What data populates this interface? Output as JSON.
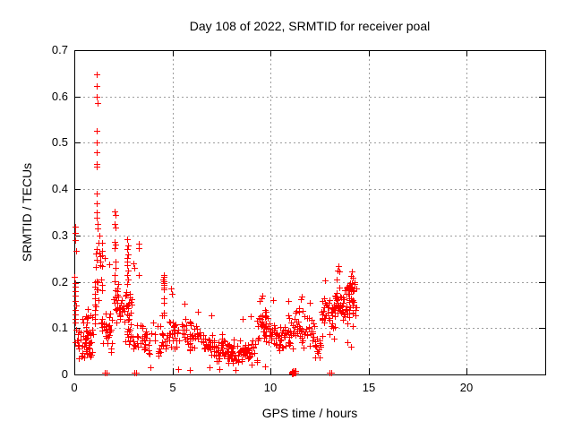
{
  "title": "Day 108 of 2022, SRMTID for receiver poal",
  "chart_data": {
    "type": "scatter",
    "title": "Day 108 of 2022, SRMTID for receiver poal",
    "xlabel": "GPS time / hours",
    "ylabel": "SRMTID / TECUs",
    "xlim": [
      0,
      24
    ],
    "ylim": [
      0,
      0.7
    ],
    "xticks": [
      0,
      5,
      10,
      15,
      20
    ],
    "yticks": [
      0,
      0.1,
      0.2,
      0.3,
      0.4,
      0.5,
      0.6,
      0.7
    ],
    "grid": true,
    "legend": "none",
    "marker": "plus",
    "marker_color": "#ff0000",
    "grid_color": "#9e9e9e",
    "axis_color": "#000000",
    "band_seed": 7,
    "points": [
      [
        0.03,
        0.32
      ],
      [
        0.06,
        0.305
      ],
      [
        0.05,
        0.29
      ],
      [
        0.08,
        0.267
      ],
      [
        0.02,
        0.21
      ],
      [
        0.04,
        0.198
      ],
      [
        0.03,
        0.19
      ],
      [
        0.06,
        0.18
      ],
      [
        0.05,
        0.17
      ],
      [
        0.04,
        0.158
      ],
      [
        0.07,
        0.148
      ],
      [
        0.03,
        0.14
      ],
      [
        0.05,
        0.13
      ],
      [
        0.06,
        0.12
      ],
      [
        0.04,
        0.112
      ],
      [
        1.05,
        0.2
      ],
      [
        1.06,
        0.19
      ],
      [
        1.04,
        0.175
      ],
      [
        1.07,
        0.165
      ],
      [
        1.05,
        0.15
      ],
      [
        1.06,
        0.14
      ],
      [
        1.04,
        0.13
      ],
      [
        1.05,
        0.12
      ],
      [
        1.03,
        0.11
      ],
      [
        1.14,
        0.648
      ],
      [
        1.15,
        0.622
      ],
      [
        1.16,
        0.6
      ],
      [
        1.17,
        0.585
      ],
      [
        1.13,
        0.525
      ],
      [
        1.14,
        0.5
      ],
      [
        1.15,
        0.48
      ],
      [
        1.13,
        0.455
      ],
      [
        1.16,
        0.448
      ],
      [
        1.14,
        0.39
      ],
      [
        1.15,
        0.37
      ],
      [
        1.13,
        0.35
      ],
      [
        1.16,
        0.338
      ],
      [
        1.2,
        0.325
      ],
      [
        1.28,
        0.3
      ],
      [
        1.22,
        0.285
      ],
      [
        1.55,
        0.252
      ],
      [
        1.78,
        0.238
      ],
      [
        2.07,
        0.352
      ],
      [
        2.08,
        0.345
      ],
      [
        2.06,
        0.325
      ],
      [
        2.09,
        0.318
      ],
      [
        2.07,
        0.287
      ],
      [
        2.08,
        0.28
      ],
      [
        2.06,
        0.272
      ],
      [
        2.1,
        0.244
      ],
      [
        2.08,
        0.23
      ],
      [
        2.07,
        0.215
      ],
      [
        2.7,
        0.292
      ],
      [
        2.72,
        0.278
      ],
      [
        2.68,
        0.27
      ],
      [
        2.73,
        0.26
      ],
      [
        2.7,
        0.252
      ],
      [
        2.71,
        0.243
      ],
      [
        2.69,
        0.235
      ],
      [
        2.72,
        0.225
      ],
      [
        2.7,
        0.215
      ],
      [
        2.74,
        0.205
      ],
      [
        2.68,
        0.195
      ],
      [
        3.02,
        0.24
      ],
      [
        3.06,
        0.231
      ],
      [
        3.28,
        0.282
      ],
      [
        3.3,
        0.273
      ],
      [
        3.29,
        0.214
      ],
      [
        4.55,
        0.215
      ],
      [
        4.57,
        0.21
      ],
      [
        4.53,
        0.205
      ],
      [
        4.58,
        0.202
      ],
      [
        4.55,
        0.198
      ],
      [
        4.56,
        0.193
      ],
      [
        4.54,
        0.188
      ],
      [
        4.57,
        0.183
      ],
      [
        4.55,
        0.165
      ],
      [
        4.56,
        0.155
      ],
      [
        4.54,
        0.133
      ],
      [
        4.58,
        0.128
      ],
      [
        4.45,
        0.128
      ],
      [
        4.92,
        0.185
      ],
      [
        4.97,
        0.175
      ],
      [
        5.6,
        0.152
      ],
      [
        6.3,
        0.135
      ],
      [
        7.0,
        0.128
      ],
      [
        8.6,
        0.12
      ],
      [
        9.0,
        0.125
      ],
      [
        9.45,
        0.158
      ],
      [
        9.55,
        0.164
      ],
      [
        9.6,
        0.17
      ],
      [
        10.15,
        0.16
      ],
      [
        10.9,
        0.158
      ],
      [
        11.55,
        0.162
      ],
      [
        11.6,
        0.168
      ],
      [
        12.0,
        0.155
      ],
      [
        3.9,
        0.015
      ],
      [
        5.3,
        0.012
      ],
      [
        5.9,
        0.01
      ],
      [
        6.9,
        0.015
      ],
      [
        7.4,
        0.012
      ],
      [
        8.2,
        0.01
      ],
      [
        9.05,
        0.022
      ],
      [
        9.7,
        0.018
      ],
      [
        1.55,
        0.004
      ],
      [
        1.63,
        0.004
      ],
      [
        3.05,
        0.004
      ],
      [
        3.15,
        0.004
      ],
      [
        13.0,
        0.004
      ],
      [
        13.1,
        0.004
      ],
      [
        13.46,
        0.234
      ],
      [
        13.42,
        0.224
      ],
      [
        13.5,
        0.222
      ],
      [
        14.15,
        0.222
      ],
      [
        14.12,
        0.213
      ],
      [
        14.2,
        0.209
      ],
      [
        12.77,
        0.203
      ],
      [
        13.35,
        0.205
      ],
      [
        14.05,
        0.198
      ],
      [
        14.3,
        0.195
      ],
      [
        14.35,
        0.185
      ],
      [
        12.48,
        0.073
      ],
      [
        12.55,
        0.064
      ],
      [
        12.64,
        0.083
      ],
      [
        13.0,
        0.087
      ],
      [
        13.25,
        0.077
      ],
      [
        13.9,
        0.07
      ],
      [
        14.1,
        0.06
      ]
    ],
    "bands": [
      {
        "x0": 0.05,
        "x1": 1.0,
        "n": 55,
        "ymin": 0.03,
        "ymax": 0.105
      },
      {
        "x0": 0.3,
        "x1": 0.95,
        "n": 10,
        "ymin": 0.09,
        "ymax": 0.145
      },
      {
        "x0": 1.05,
        "x1": 1.45,
        "n": 25,
        "ymin": 0.09,
        "ymax": 0.33
      },
      {
        "x0": 1.35,
        "x1": 1.95,
        "n": 30,
        "ymin": 0.045,
        "ymax": 0.15
      },
      {
        "x0": 2.0,
        "x1": 2.3,
        "n": 18,
        "ymin": 0.1,
        "ymax": 0.21
      },
      {
        "x0": 2.3,
        "x1": 2.95,
        "n": 35,
        "ymin": 0.1,
        "ymax": 0.185
      },
      {
        "x0": 2.5,
        "x1": 3.1,
        "n": 15,
        "ymin": 0.048,
        "ymax": 0.1
      },
      {
        "x0": 3.1,
        "x1": 4.55,
        "n": 45,
        "ymin": 0.035,
        "ymax": 0.115
      },
      {
        "x0": 4.6,
        "x1": 5.15,
        "n": 20,
        "ymin": 0.05,
        "ymax": 0.135
      },
      {
        "x0": 5.0,
        "x1": 6.6,
        "n": 55,
        "ymin": 0.04,
        "ymax": 0.125
      },
      {
        "x0": 6.6,
        "x1": 7.6,
        "n": 50,
        "ymin": 0.025,
        "ymax": 0.095
      },
      {
        "x0": 7.6,
        "x1": 9.3,
        "n": 90,
        "ymin": 0.02,
        "ymax": 0.08
      },
      {
        "x0": 9.3,
        "x1": 10.05,
        "n": 45,
        "ymin": 0.06,
        "ymax": 0.155
      },
      {
        "x0": 10.05,
        "x1": 10.7,
        "n": 30,
        "ymin": 0.04,
        "ymax": 0.12
      },
      {
        "x0": 10.7,
        "x1": 11.05,
        "n": 18,
        "ymin": 0.05,
        "ymax": 0.145
      },
      {
        "x0": 11.05,
        "x1": 11.3,
        "n": 15,
        "ymin": 0.0,
        "ymax": 0.012
      },
      {
        "x0": 11.1,
        "x1": 12.25,
        "n": 50,
        "ymin": 0.05,
        "ymax": 0.145
      },
      {
        "x0": 12.25,
        "x1": 12.6,
        "n": 12,
        "ymin": 0.03,
        "ymax": 0.09
      },
      {
        "x0": 12.6,
        "x1": 13.3,
        "n": 40,
        "ymin": 0.09,
        "ymax": 0.185
      },
      {
        "x0": 13.3,
        "x1": 14.4,
        "n": 70,
        "ymin": 0.1,
        "ymax": 0.205
      }
    ]
  }
}
